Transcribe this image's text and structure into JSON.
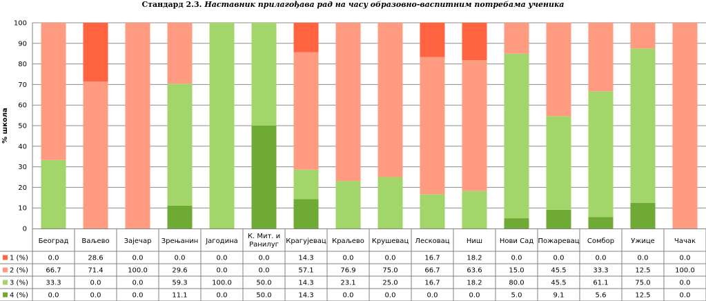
{
  "title_prefix": "Стандард 2.3.",
  "title_text": "Наставник прилагођава рад на часу образовно-васпитним потребама ученика",
  "colors": {
    "s1": "#ff6340",
    "s2": "#ff9b80",
    "s3": "#a3d66a",
    "s4": "#6faa34",
    "grid": "#8c8c8c",
    "axis": "#808080"
  },
  "chart_data": {
    "type": "bar",
    "stacked": true,
    "title": "Стандард 2.3. Наставник прилагођава рад на часу образовно-васпитним потребама ученика",
    "xlabel": "",
    "ylabel": "% школа",
    "ylim": [
      0,
      100
    ],
    "yticks": [
      0,
      10,
      20,
      30,
      40,
      50,
      60,
      70,
      80,
      90,
      100
    ],
    "grid": true,
    "legend": "data-table-left",
    "categories": [
      "Београд",
      "Ваљево",
      "Зајечар",
      "Зрењанин",
      "Јагодина",
      "К. Мит. и Ранилуг",
      "Крагујевац",
      "Краљево",
      "Крушевац",
      "Лесковац",
      "Ниш",
      "Нови Сад",
      "Пожаревац",
      "Сомбор",
      "Ужице",
      "Чачак"
    ],
    "series": [
      {
        "name": "1 (%)",
        "values": [
          0.0,
          28.6,
          0.0,
          0.0,
          0.0,
          0.0,
          14.3,
          0.0,
          0.0,
          16.7,
          18.2,
          0.0,
          0.0,
          0.0,
          0.0,
          0.0
        ]
      },
      {
        "name": "2 (%)",
        "values": [
          66.7,
          71.4,
          100.0,
          29.6,
          0.0,
          0.0,
          57.1,
          76.9,
          75.0,
          66.7,
          63.6,
          15.0,
          45.5,
          33.3,
          12.5,
          100.0
        ]
      },
      {
        "name": "3 (%)",
        "values": [
          33.3,
          0.0,
          0.0,
          59.3,
          100.0,
          50.0,
          14.3,
          23.1,
          25.0,
          16.7,
          18.2,
          80.0,
          45.5,
          61.1,
          75.0,
          0.0
        ]
      },
      {
        "name": "4 (%)",
        "values": [
          0.0,
          0.0,
          0.0,
          11.1,
          0.0,
          50.0,
          14.3,
          0.0,
          0.0,
          0.0,
          0.0,
          5.0,
          9.1,
          5.6,
          12.5,
          0.0
        ]
      }
    ]
  }
}
